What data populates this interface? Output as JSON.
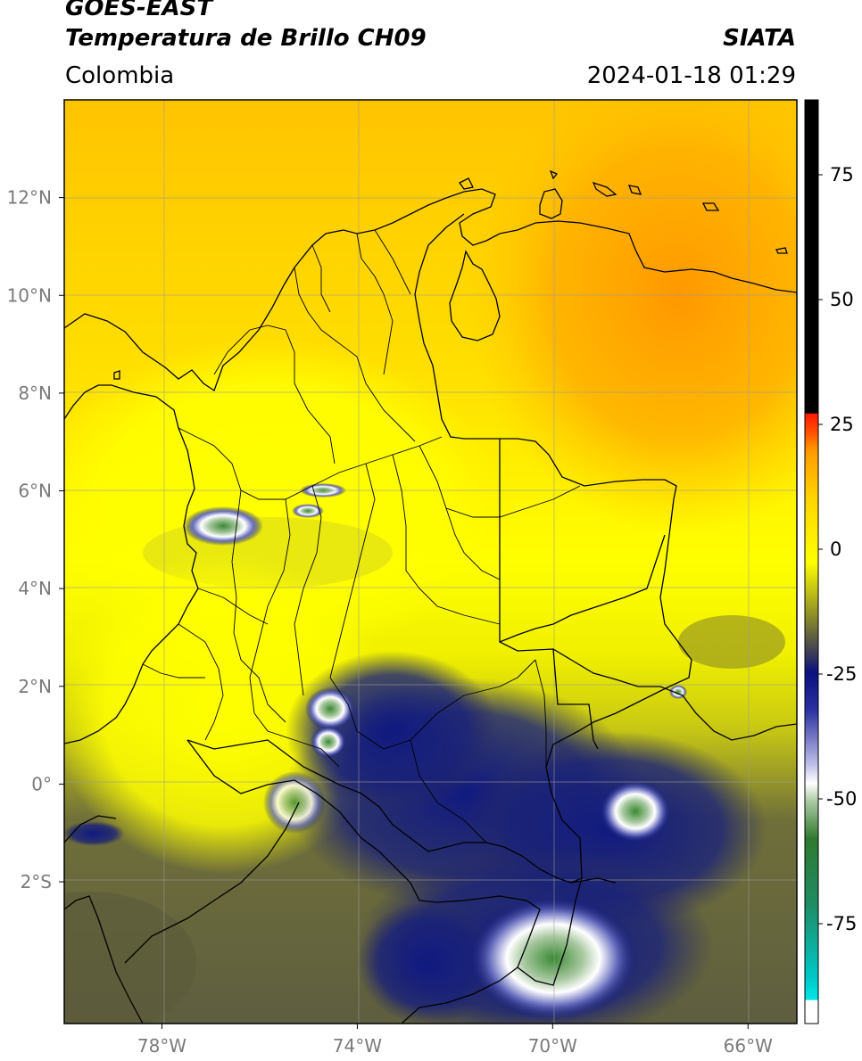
{
  "header": {
    "satellite": "GOES-EAST",
    "product": "Temperatura de Brillo CH09",
    "region": "Colombia",
    "agency": "SIATA",
    "datetime": "2024-01-18 01:29"
  },
  "map": {
    "lon_range": [
      -80,
      -65
    ],
    "lat_range": [
      -4.9,
      14
    ],
    "lon_ticks": [
      {
        "value": -78,
        "label": "78°W"
      },
      {
        "value": -74,
        "label": "74°W"
      },
      {
        "value": -70,
        "label": "70°W"
      },
      {
        "value": -66,
        "label": "66°W"
      }
    ],
    "lat_ticks": [
      {
        "value": 12,
        "label": "12°N"
      },
      {
        "value": 10,
        "label": "10°N"
      },
      {
        "value": 8,
        "label": "8°N"
      },
      {
        "value": 6,
        "label": "6°N"
      },
      {
        "value": 4,
        "label": "4°N"
      },
      {
        "value": 2,
        "label": "2°N"
      },
      {
        "value": 0,
        "label": "0°"
      },
      {
        "value": -2,
        "label": "2°S"
      }
    ]
  },
  "colorbar": {
    "range": [
      -95,
      90
    ],
    "ticks": [
      {
        "value": 75,
        "label": "75"
      },
      {
        "value": 50,
        "label": "50"
      },
      {
        "value": 25,
        "label": "25"
      },
      {
        "value": 0,
        "label": "0"
      },
      {
        "value": -25,
        "label": "-25"
      },
      {
        "value": -50,
        "label": "-50"
      },
      {
        "value": -75,
        "label": "-75"
      }
    ],
    "colors": {
      "white": "#ffffff",
      "cyan": "#00e0e0",
      "green": "#2f8a2f",
      "navy": "#0a137a",
      "olive": "#8f8f1e",
      "yellow": "#ffff00",
      "orange": "#ff9a00",
      "red": "#ff2000",
      "black": "#000000"
    }
  }
}
